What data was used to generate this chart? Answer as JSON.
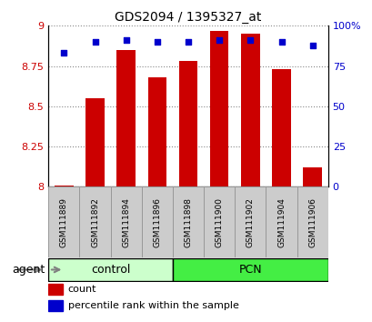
{
  "title": "GDS2094 / 1395327_at",
  "samples": [
    "GSM111889",
    "GSM111892",
    "GSM111894",
    "GSM111896",
    "GSM111898",
    "GSM111900",
    "GSM111902",
    "GSM111904",
    "GSM111906"
  ],
  "bar_values": [
    8.01,
    8.55,
    8.85,
    8.68,
    8.78,
    8.97,
    8.95,
    8.73,
    8.12
  ],
  "percentile_values": [
    83,
    90,
    91,
    90,
    90,
    91,
    91,
    90,
    88
  ],
  "bar_bottom": 8.0,
  "ylim_left": [
    8.0,
    9.0
  ],
  "ylim_right": [
    0,
    100
  ],
  "yticks_left": [
    8.0,
    8.25,
    8.5,
    8.75,
    9.0
  ],
  "yticks_right": [
    0,
    25,
    50,
    75,
    100
  ],
  "ytick_labels_left": [
    "8",
    "8.25",
    "8.5",
    "8.75",
    "9"
  ],
  "ytick_labels_right": [
    "0",
    "25",
    "50",
    "75",
    "100%"
  ],
  "bar_color": "#cc0000",
  "dot_color": "#0000cc",
  "groups": [
    {
      "label": "control",
      "start": 0,
      "end": 4,
      "color": "#ccffcc"
    },
    {
      "label": "PCN",
      "start": 4,
      "end": 9,
      "color": "#44ee44"
    }
  ],
  "group_label_prefix": "agent",
  "legend_items": [
    {
      "label": "count",
      "color": "#cc0000"
    },
    {
      "label": "percentile rank within the sample",
      "color": "#0000cc"
    }
  ],
  "grid_color": "#888888",
  "background_color": "#ffffff",
  "plot_bg_color": "#ffffff",
  "left_axis_color": "#cc0000",
  "right_axis_color": "#0000cc",
  "sample_box_color": "#cccccc",
  "sample_box_edge": "#999999"
}
